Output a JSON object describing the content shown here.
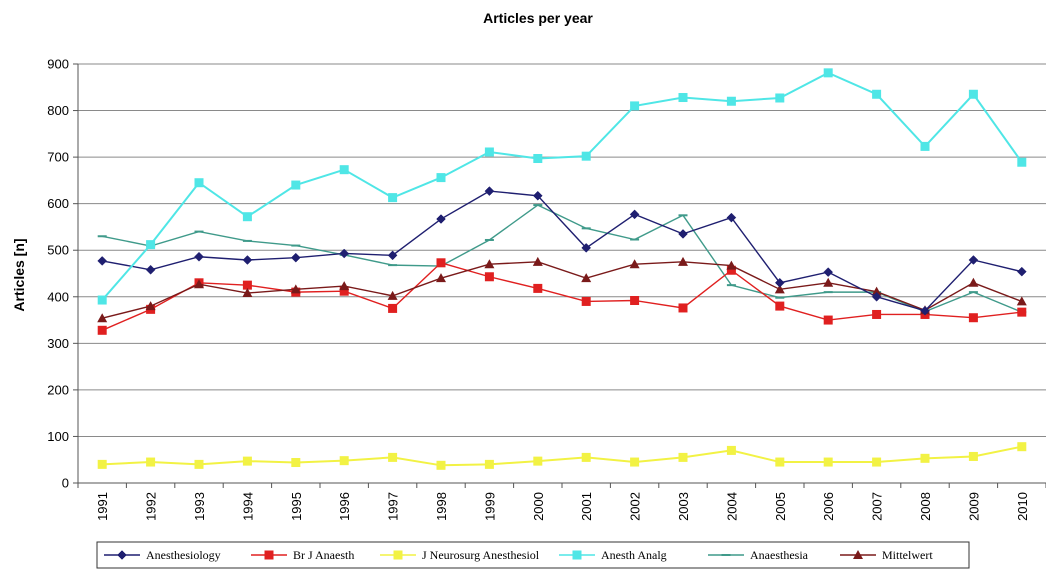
{
  "chart_data": {
    "type": "line",
    "title": "Articles per year",
    "ylabel": "Articles [n]",
    "xlabel": "",
    "ylim": [
      0,
      900
    ],
    "yticks": [
      0,
      100,
      200,
      300,
      400,
      500,
      600,
      700,
      800,
      900
    ],
    "grid": true,
    "legend_position": "bottom",
    "categories": [
      "1991",
      "1992",
      "1993",
      "1994",
      "1995",
      "1996",
      "1997",
      "1998",
      "1999",
      "2000",
      "2001",
      "2002",
      "2003",
      "2004",
      "2005",
      "2006",
      "2007",
      "2008",
      "2009",
      "2010"
    ],
    "series": [
      {
        "name": "Anesthesiology",
        "color": "#1f1f70",
        "marker": "diamond",
        "values": [
          477,
          458,
          486,
          479,
          484,
          493,
          489,
          567,
          627,
          617,
          505,
          577,
          535,
          570,
          430,
          453,
          400,
          370,
          479,
          454
        ]
      },
      {
        "name": "Br J Anaesth",
        "color": "#e02020",
        "marker": "square",
        "values": [
          328,
          373,
          430,
          425,
          410,
          412,
          375,
          473,
          443,
          418,
          390,
          392,
          376,
          457,
          380,
          350,
          362,
          362,
          355,
          367
        ]
      },
      {
        "name": "J Neurosurg Anesthesiol",
        "color": "#f2f244",
        "marker": "square",
        "values": [
          40,
          45,
          40,
          47,
          44,
          48,
          55,
          38,
          40,
          47,
          55,
          45,
          55,
          70,
          45,
          45,
          45,
          53,
          57,
          78
        ]
      },
      {
        "name": "Anesth Analg",
        "color": "#4fe6e6",
        "marker": "square",
        "values": [
          393,
          512,
          645,
          572,
          640,
          673,
          613,
          656,
          711,
          697,
          702,
          810,
          828,
          820,
          827,
          881,
          835,
          723,
          835,
          689
        ]
      },
      {
        "name": "Anaesthesia",
        "color": "#3f9a8a",
        "marker": "dash",
        "values": [
          530,
          509,
          540,
          520,
          510,
          490,
          468,
          466,
          522,
          597,
          547,
          523,
          575,
          425,
          398,
          410,
          410,
          368,
          410,
          367
        ]
      },
      {
        "name": "Mittelwert",
        "color": "#7a1a1a",
        "marker": "triangle",
        "values": [
          354,
          380,
          427,
          408,
          416,
          423,
          402,
          440,
          470,
          475,
          440,
          470,
          475,
          467,
          416,
          430,
          411,
          371,
          430,
          390
        ]
      }
    ]
  }
}
